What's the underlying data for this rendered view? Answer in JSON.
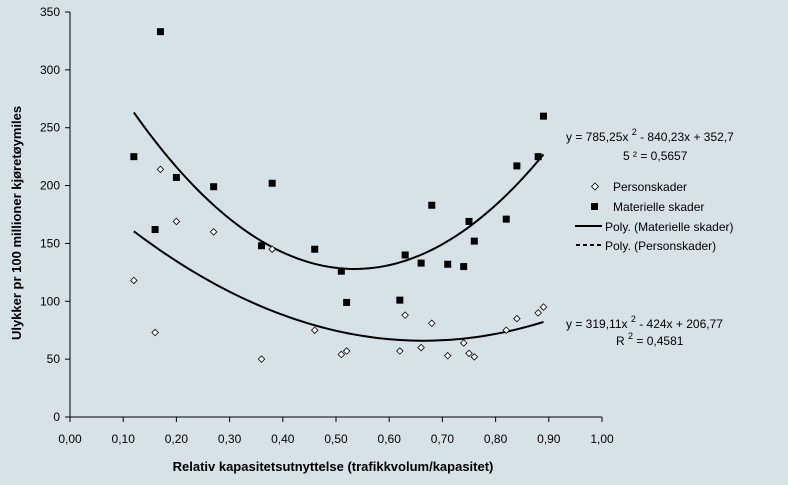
{
  "chart_data": {
    "type": "scatter",
    "xlabel": "Relativ kapasitetsutnyttelse (trafikkvolum/kapasitet)",
    "ylabel": "Ulykker pr 100 millioner kjøretøymiles",
    "xlim": [
      0,
      1.0
    ],
    "ylim": [
      0,
      350
    ],
    "x_ticks": [
      "0,00",
      "0,10",
      "0,20",
      "0,30",
      "0,40",
      "0,50",
      "0,60",
      "0,70",
      "0,80",
      "0,90",
      "1,00"
    ],
    "y_ticks": [
      "0",
      "50",
      "100",
      "150",
      "200",
      "250",
      "300",
      "350"
    ],
    "grid": false,
    "legend_position": "right",
    "colors": {
      "background": "#d6e2e8",
      "marks": "#000000"
    },
    "series": [
      {
        "name": "Materielle skader",
        "marker": "filled-square",
        "points": [
          [
            0.12,
            225
          ],
          [
            0.16,
            162
          ],
          [
            0.17,
            333
          ],
          [
            0.2,
            207
          ],
          [
            0.27,
            199
          ],
          [
            0.36,
            148
          ],
          [
            0.38,
            202
          ],
          [
            0.46,
            145
          ],
          [
            0.51,
            126
          ],
          [
            0.52,
            99
          ],
          [
            0.62,
            101
          ],
          [
            0.63,
            140
          ],
          [
            0.66,
            133
          ],
          [
            0.68,
            183
          ],
          [
            0.71,
            132
          ],
          [
            0.74,
            130
          ],
          [
            0.75,
            169
          ],
          [
            0.76,
            152
          ],
          [
            0.82,
            171
          ],
          [
            0.84,
            217
          ],
          [
            0.88,
            225
          ],
          [
            0.89,
            260
          ]
        ]
      },
      {
        "name": "Personskader",
        "marker": "open-diamond",
        "points": [
          [
            0.12,
            118
          ],
          [
            0.16,
            73
          ],
          [
            0.17,
            214
          ],
          [
            0.2,
            169
          ],
          [
            0.27,
            160
          ],
          [
            0.36,
            50
          ],
          [
            0.38,
            145
          ],
          [
            0.46,
            75
          ],
          [
            0.51,
            54
          ],
          [
            0.52,
            57
          ],
          [
            0.62,
            57
          ],
          [
            0.63,
            88
          ],
          [
            0.66,
            60
          ],
          [
            0.68,
            81
          ],
          [
            0.71,
            53
          ],
          [
            0.74,
            64
          ],
          [
            0.75,
            55
          ],
          [
            0.76,
            52
          ],
          [
            0.82,
            75
          ],
          [
            0.84,
            85
          ],
          [
            0.88,
            90
          ],
          [
            0.89,
            95
          ]
        ]
      }
    ],
    "trendlines": [
      {
        "name": "Poly. (Materielle skader)",
        "style": "solid",
        "coefficients": [
          785.25,
          -840.23,
          352.7
        ],
        "x_range": [
          0.12,
          0.89
        ]
      },
      {
        "name": "Poly. (Personskader)",
        "style": "dashed",
        "coefficients": [
          319.11,
          -424,
          206.77
        ],
        "x_range": [
          0.12,
          0.89
        ]
      }
    ],
    "annotations": {
      "eq1_line1": "y = 785,25x",
      "eq1_sup": "2",
      "eq1_line1_rest": " - 840,23x + 352,7",
      "eq1_line2": "5 ² = 0,5657",
      "eq2_line1": "y = 319,11x",
      "eq2_sup": "2",
      "eq2_line1_rest": " - 424x + 206,77",
      "eq2_line2_prefix": "R",
      "eq2_line2_sup": "2",
      "eq2_line2_rest": " = 0,4581"
    }
  }
}
